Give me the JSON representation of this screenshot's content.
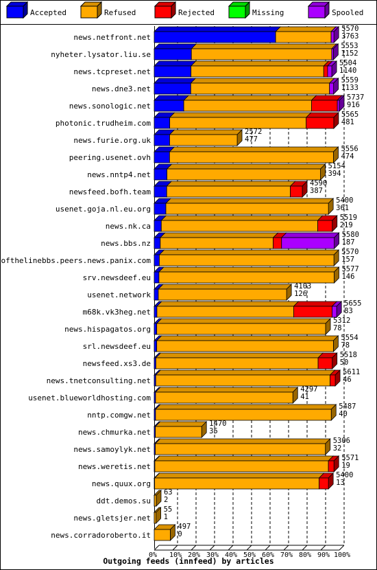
{
  "chart_data": {
    "type": "bar",
    "orientation": "horizontal",
    "stacked": true,
    "percent_scale": true,
    "title": "Outgoing feeds (innfeed) by articles",
    "legend": [
      {
        "name": "Accepted",
        "color": "#0000ff"
      },
      {
        "name": "Refused",
        "color": "#ffaa00"
      },
      {
        "name": "Rejected",
        "color": "#ff0000"
      },
      {
        "name": "Missing",
        "color": "#00ff00"
      },
      {
        "name": "Spooled",
        "color": "#aa00ff"
      }
    ],
    "legend_placement": "top",
    "x_ticks": [
      "0%",
      "10%",
      "20%",
      "30%",
      "40%",
      "50%",
      "60%",
      "70%",
      "80%",
      "90%",
      "100%"
    ],
    "grid": true,
    "rows": [
      {
        "label": "news.netfront.net",
        "total": 5570,
        "accepted": 3763,
        "refused": 1720,
        "rejected": 0,
        "missing": 0,
        "spooled": 87
      },
      {
        "label": "nyheter.lysator.liu.se",
        "total": 5553,
        "accepted": 1152,
        "refused": 4350,
        "rejected": 0,
        "missing": 0,
        "spooled": 51
      },
      {
        "label": "news.tcpreset.net",
        "total": 5504,
        "accepted": 1140,
        "refused": 4114,
        "rejected": 120,
        "missing": 0,
        "spooled": 130
      },
      {
        "label": "news.dne3.net",
        "total": 5559,
        "accepted": 1133,
        "refused": 4300,
        "rejected": 0,
        "missing": 0,
        "spooled": 126
      },
      {
        "label": "news.sonologic.net",
        "total": 5737,
        "accepted": 916,
        "refused": 3960,
        "rejected": 800,
        "missing": 0,
        "spooled": 61
      },
      {
        "label": "photonic.trudheim.com",
        "total": 5565,
        "accepted": 481,
        "refused": 4230,
        "rejected": 854,
        "missing": 0,
        "spooled": 0
      },
      {
        "label": "news.furie.org.uk",
        "total": 2572,
        "accepted": 477,
        "refused": 2095,
        "rejected": 0,
        "missing": 0,
        "spooled": 0
      },
      {
        "label": "peering.usenet.ovh",
        "total": 5556,
        "accepted": 474,
        "refused": 5082,
        "rejected": 0,
        "missing": 0,
        "spooled": 0
      },
      {
        "label": "news.nntp4.net",
        "total": 5154,
        "accepted": 394,
        "refused": 4760,
        "rejected": 0,
        "missing": 0,
        "spooled": 0
      },
      {
        "label": "newsfeed.bofh.team",
        "total": 4590,
        "accepted": 387,
        "refused": 3833,
        "rejected": 370,
        "missing": 0,
        "spooled": 0
      },
      {
        "label": "usenet.goja.nl.eu.org",
        "total": 5400,
        "accepted": 361,
        "refused": 5039,
        "rejected": 0,
        "missing": 0,
        "spooled": 0
      },
      {
        "label": "news.nk.ca",
        "total": 5519,
        "accepted": 219,
        "refused": 4850,
        "rejected": 450,
        "missing": 0,
        "spooled": 0
      },
      {
        "label": "news.bbs.nz",
        "total": 5580,
        "accepted": 187,
        "refused": 3500,
        "rejected": 260,
        "missing": 0,
        "spooled": 1633
      },
      {
        "label": "endofthelinebbs.peers.news.panix.com",
        "total": 5570,
        "accepted": 157,
        "refused": 5413,
        "rejected": 0,
        "missing": 0,
        "spooled": 0
      },
      {
        "label": "srv.newsdeef.eu",
        "total": 5577,
        "accepted": 146,
        "refused": 5431,
        "rejected": 0,
        "missing": 0,
        "spooled": 0
      },
      {
        "label": "usenet.network",
        "total": 4103,
        "accepted": 126,
        "refused": 3977,
        "rejected": 0,
        "missing": 0,
        "spooled": 0
      },
      {
        "label": "m68k.vk3heg.net",
        "total": 5655,
        "accepted": 83,
        "refused": 4240,
        "rejected": 1190,
        "missing": 0,
        "spooled": 142
      },
      {
        "label": "news.hispagatos.org",
        "total": 5312,
        "accepted": 78,
        "refused": 5234,
        "rejected": 0,
        "missing": 0,
        "spooled": 0
      },
      {
        "label": "srl.newsdeef.eu",
        "total": 5554,
        "accepted": 78,
        "refused": 5476,
        "rejected": 0,
        "missing": 0,
        "spooled": 0
      },
      {
        "label": "newsfeed.xs3.de",
        "total": 5518,
        "accepted": 50,
        "refused": 5030,
        "rejected": 438,
        "missing": 0,
        "spooled": 0
      },
      {
        "label": "news.tnetconsulting.net",
        "total": 5611,
        "accepted": 46,
        "refused": 5405,
        "rejected": 160,
        "missing": 0,
        "spooled": 0
      },
      {
        "label": "usenet.blueworldhosting.com",
        "total": 4297,
        "accepted": 41,
        "refused": 4256,
        "rejected": 0,
        "missing": 0,
        "spooled": 0
      },
      {
        "label": "nntp.comgw.net",
        "total": 5487,
        "accepted": 40,
        "refused": 5447,
        "rejected": 0,
        "missing": 0,
        "spooled": 0
      },
      {
        "label": "news.chmurka.net",
        "total": 1470,
        "accepted": 35,
        "refused": 1435,
        "rejected": 0,
        "missing": 0,
        "spooled": 0
      },
      {
        "label": "news.samoylyk.net",
        "total": 5306,
        "accepted": 32,
        "refused": 5274,
        "rejected": 0,
        "missing": 0,
        "spooled": 0
      },
      {
        "label": "news.weretis.net",
        "total": 5571,
        "accepted": 19,
        "refused": 5380,
        "rejected": 172,
        "missing": 0,
        "spooled": 0
      },
      {
        "label": "news.quux.org",
        "total": 5400,
        "accepted": 13,
        "refused": 5097,
        "rejected": 290,
        "missing": 0,
        "spooled": 0
      },
      {
        "label": "ddt.demos.su",
        "total": 63,
        "accepted": 2,
        "refused": 61,
        "rejected": 0,
        "missing": 0,
        "spooled": 0
      },
      {
        "label": "news.gletsjer.net",
        "total": 55,
        "accepted": 1,
        "refused": 54,
        "rejected": 0,
        "missing": 0,
        "spooled": 0
      },
      {
        "label": "news.corradoroberto.it",
        "total": 497,
        "accepted": 0,
        "refused": 497,
        "rejected": 0,
        "missing": 0,
        "spooled": 0
      }
    ]
  }
}
